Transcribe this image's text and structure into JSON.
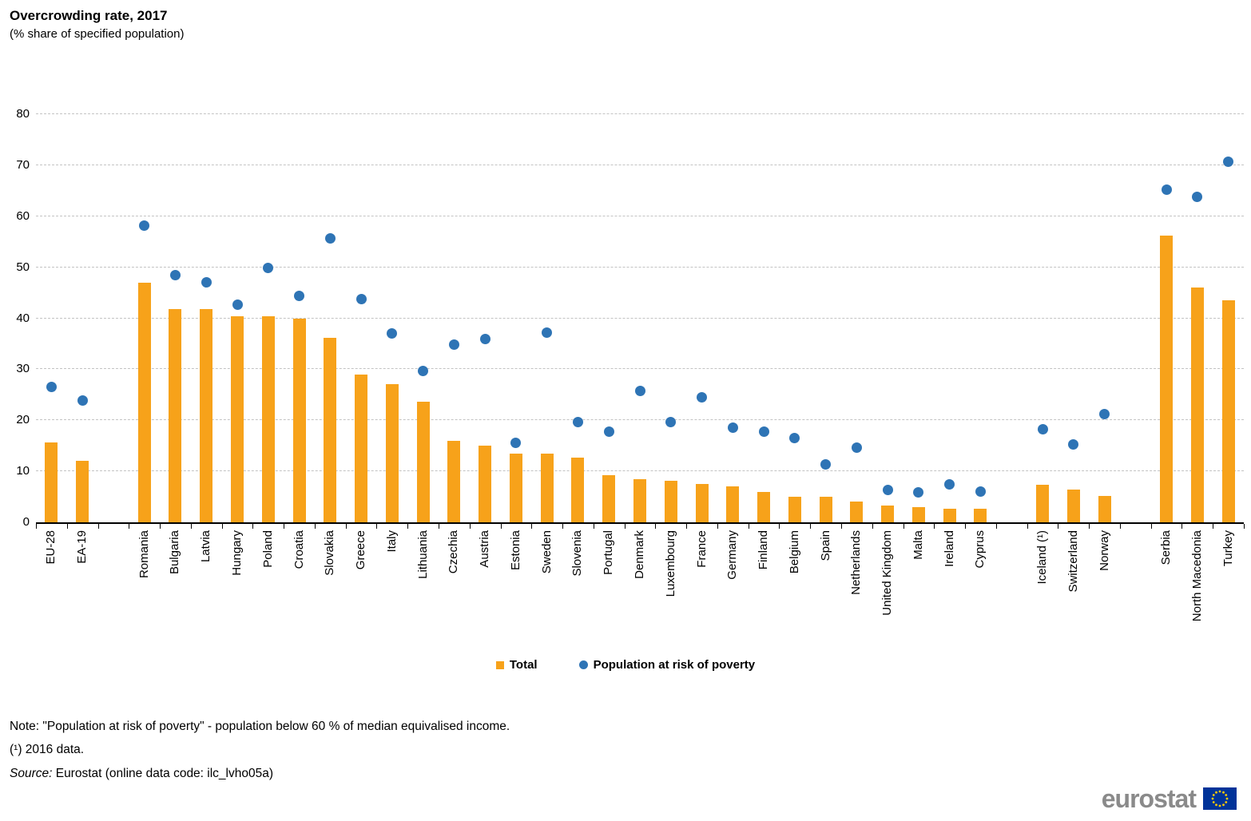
{
  "title": "Overcrowding rate, 2017",
  "subtitle": "(% share of specified population)",
  "y_axis": {
    "min": 0,
    "max": 80,
    "step": 10,
    "ticks": [
      0,
      10,
      20,
      30,
      40,
      50,
      60,
      70,
      80
    ]
  },
  "legend": {
    "total_label": "Total",
    "poverty_label": "Population at risk of poverty"
  },
  "colors": {
    "bar": "#F7A21A",
    "dot": "#2E74B5",
    "grid": "#C3C3C3",
    "axis": "#000000",
    "logo_gray": "#8A8A8A",
    "flag_blue": "#003399",
    "flag_stars": "#FFCC00"
  },
  "notes": {
    "note": "Note: \"Population at risk of poverty\" - population below 60 % of median equivalised income.",
    "footnote": "(¹) 2016 data.",
    "source_prefix": "Source:",
    "source_text": " Eurostat (online data code: ilc_lvho05a)"
  },
  "logo_text": "eurostat",
  "chart_data": {
    "type": "bar",
    "title": "Overcrowding rate, 2017",
    "subtitle": "(% share of specified population)",
    "ylim": [
      0,
      80
    ],
    "ytick_step": 10,
    "grid": true,
    "legend_position": "bottom",
    "series": [
      {
        "name": "Total",
        "type": "bar",
        "color": "#F7A21A"
      },
      {
        "name": "Population at risk of poverty",
        "type": "scatter",
        "color": "#2E74B5"
      }
    ],
    "items": [
      {
        "label": "EU-28",
        "total": 15.7,
        "poverty": 26.5
      },
      {
        "label": "EA-19",
        "total": 12.1,
        "poverty": 23.8
      },
      {
        "label": "",
        "total": null,
        "poverty": null,
        "spacer": true
      },
      {
        "label": "Romania",
        "total": 47.0,
        "poverty": 58.2
      },
      {
        "label": "Bulgaria",
        "total": 41.8,
        "poverty": 48.5
      },
      {
        "label": "Latvia",
        "total": 41.8,
        "poverty": 47.1
      },
      {
        "label": "Hungary",
        "total": 40.4,
        "poverty": 42.6
      },
      {
        "label": "Poland",
        "total": 40.4,
        "poverty": 49.9
      },
      {
        "label": "Croatia",
        "total": 39.9,
        "poverty": 44.4
      },
      {
        "label": "Slovakia",
        "total": 36.2,
        "poverty": 55.6
      },
      {
        "label": "Greece",
        "total": 28.9,
        "poverty": 43.8
      },
      {
        "label": "Italy",
        "total": 27.1,
        "poverty": 37.0
      },
      {
        "label": "Lithuania",
        "total": 23.6,
        "poverty": 29.6
      },
      {
        "label": "Czechia",
        "total": 15.9,
        "poverty": 34.8
      },
      {
        "label": "Austria",
        "total": 15.0,
        "poverty": 36.0
      },
      {
        "label": "Estonia",
        "total": 13.4,
        "poverty": 15.6
      },
      {
        "label": "Sweden",
        "total": 13.4,
        "poverty": 37.2
      },
      {
        "label": "Slovenia",
        "total": 12.7,
        "poverty": 19.7
      },
      {
        "label": "Portugal",
        "total": 9.3,
        "poverty": 17.7
      },
      {
        "label": "Denmark",
        "total": 8.5,
        "poverty": 25.7
      },
      {
        "label": "Luxembourg",
        "total": 8.1,
        "poverty": 19.7
      },
      {
        "label": "France",
        "total": 7.5,
        "poverty": 24.5
      },
      {
        "label": "Germany",
        "total": 7.0,
        "poverty": 18.6
      },
      {
        "label": "Finland",
        "total": 6.0,
        "poverty": 17.8
      },
      {
        "label": "Belgium",
        "total": 5.0,
        "poverty": 16.5
      },
      {
        "label": "Spain",
        "total": 5.0,
        "poverty": 11.4
      },
      {
        "label": "Netherlands",
        "total": 4.0,
        "poverty": 14.7
      },
      {
        "label": "United Kingdom",
        "total": 3.3,
        "poverty": 6.4
      },
      {
        "label": "Malta",
        "total": 2.9,
        "poverty": 5.9
      },
      {
        "label": "Ireland",
        "total": 2.7,
        "poverty": 7.5
      },
      {
        "label": "Cyprus",
        "total": 2.7,
        "poverty": 6.0
      },
      {
        "label": "",
        "total": null,
        "poverty": null,
        "spacer": true
      },
      {
        "label": "Iceland (¹)",
        "total": 7.3,
        "poverty": 18.3
      },
      {
        "label": "Switzerland",
        "total": 6.4,
        "poverty": 15.2
      },
      {
        "label": "Norway",
        "total": 5.1,
        "poverty": 21.2
      },
      {
        "label": "",
        "total": null,
        "poverty": null,
        "spacer": true
      },
      {
        "label": "Serbia",
        "total": 56.2,
        "poverty": 65.2
      },
      {
        "label": "North Macedonia",
        "total": 46.1,
        "poverty": 63.8
      },
      {
        "label": "Turkey",
        "total": 43.6,
        "poverty": 70.7
      }
    ]
  }
}
